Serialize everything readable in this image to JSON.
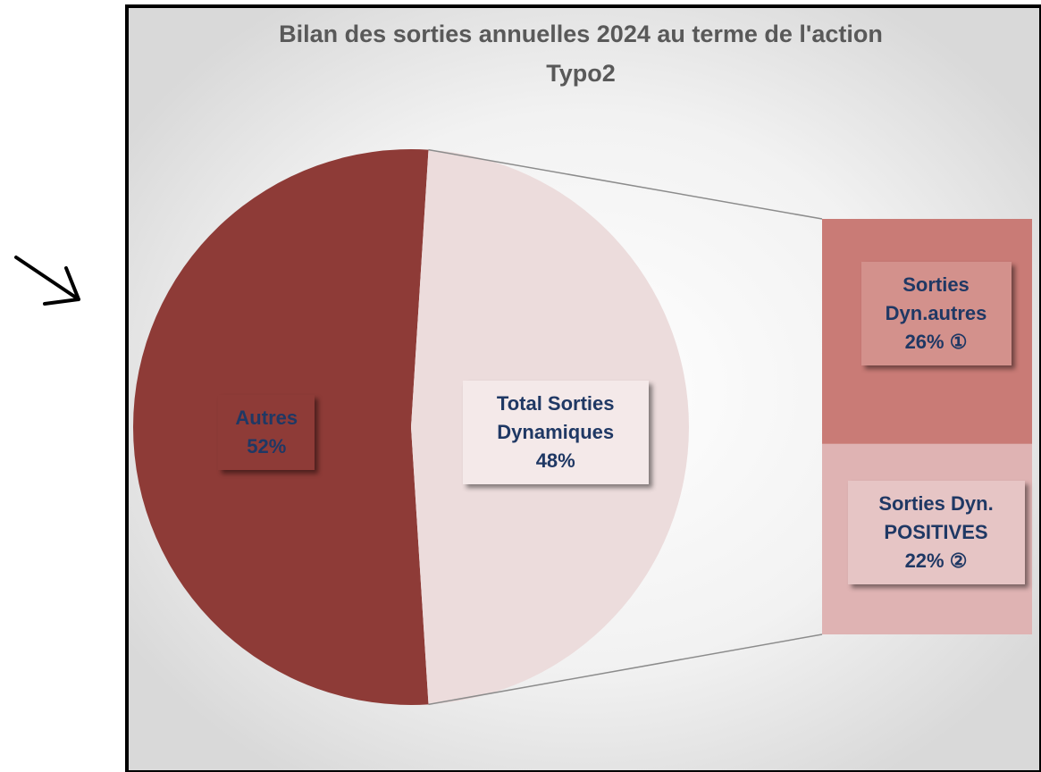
{
  "chart_data": {
    "type": "pie-of-bar",
    "title": "Bilan des sorties annuelles 2024 au terme de l'action Typo2",
    "categories": [
      "Autres",
      "Total Sorties Dynamiques"
    ],
    "values": [
      52,
      48
    ],
    "value_labels": [
      "52%",
      "48%"
    ],
    "colors": [
      "#8e3b37",
      "#ecdcdc"
    ],
    "breakdown": {
      "categories": [
        "Sorties Dyn.autres",
        "Sorties Dyn. POSITIVES"
      ],
      "values": [
        26,
        22
      ],
      "value_labels": [
        "26% ①",
        "22% ②"
      ],
      "colors": [
        "#c97b76",
        "#dfb3b3"
      ]
    }
  }
}
